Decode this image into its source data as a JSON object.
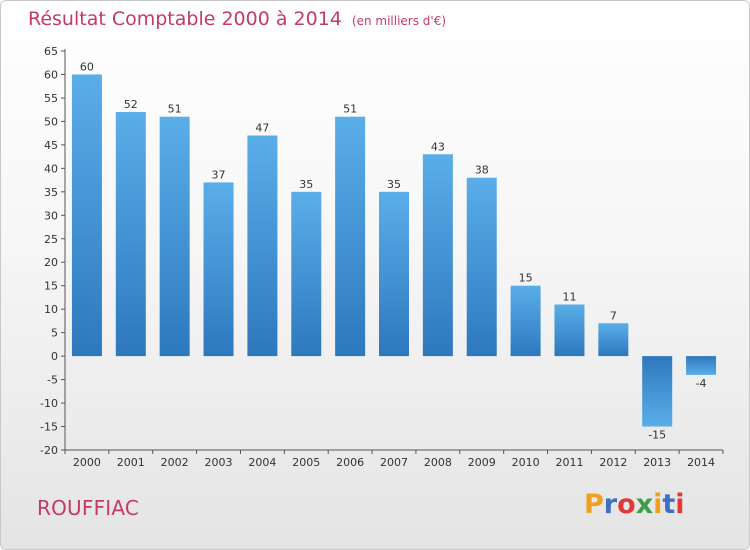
{
  "title": "Résultat Comptable 2000 à 2014",
  "subtitle": "(en milliers d'€)",
  "place": "ROUFFIAC",
  "logo": {
    "letters": [
      "P",
      "r",
      "o",
      "x",
      "i",
      "t",
      "i"
    ],
    "colors": [
      "#f0a020",
      "#3f6fc0",
      "#e03a3a",
      "#3aa048",
      "#f0a020",
      "#3f6fc0",
      "#e03a3a"
    ]
  },
  "colors": {
    "bar_top": "#5aaee8",
    "bar_bottom": "#2e78be",
    "title": "#c23a6b"
  },
  "chart_data": {
    "type": "bar",
    "title": "Résultat Comptable 2000 à 2014",
    "subtitle": "(en milliers d'€)",
    "categories": [
      "2000",
      "2001",
      "2002",
      "2003",
      "2004",
      "2005",
      "2006",
      "2007",
      "2008",
      "2009",
      "2010",
      "2011",
      "2012",
      "2013",
      "2014"
    ],
    "values": [
      60,
      52,
      51,
      37,
      47,
      35,
      51,
      35,
      43,
      38,
      15,
      11,
      7,
      -15,
      -4
    ],
    "ylim": [
      -20,
      65
    ],
    "yticks": [
      65,
      60,
      55,
      50,
      45,
      40,
      35,
      30,
      25,
      20,
      15,
      10,
      5,
      0,
      -5,
      -10,
      -15,
      -20
    ],
    "grid": false,
    "xlabel": "",
    "ylabel": ""
  }
}
